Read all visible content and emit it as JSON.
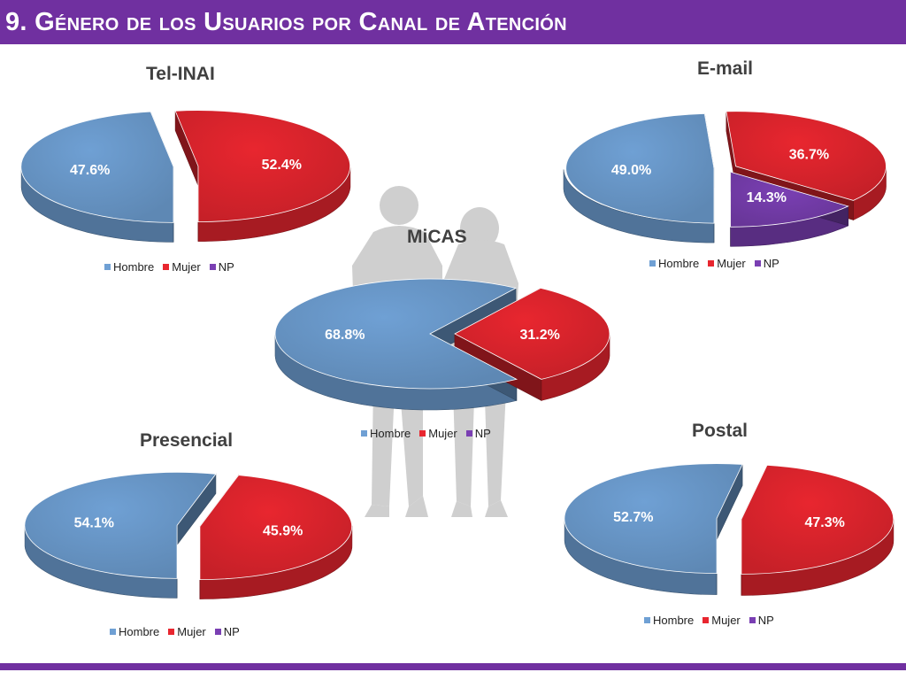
{
  "header": {
    "title": "9. Género de los Usuarios por Canal de Atención"
  },
  "colors": {
    "hombre": "#6fa0d4",
    "mujer": "#e8262f",
    "np": "#7a3fb3",
    "header_bar": "#7030a0",
    "silhouette": "#cfcfcf"
  },
  "chart_data": [
    {
      "id": "tel-inai",
      "type": "pie",
      "title": "Tel-INAI",
      "categories": [
        "Hombre",
        "Mujer",
        "NP"
      ],
      "values": [
        47.6,
        52.4,
        0
      ],
      "labels": [
        "47.6%",
        "52.4%",
        ""
      ],
      "legend": [
        "Hombre",
        "Mujer",
        "NP"
      ],
      "legend_position": "bottom"
    },
    {
      "id": "e-mail",
      "type": "pie",
      "title": "E-mail",
      "categories": [
        "Hombre",
        "Mujer",
        "NP"
      ],
      "values": [
        49.0,
        36.7,
        14.3
      ],
      "labels": [
        "49.0%",
        "36.7%",
        "14.3%"
      ],
      "legend": [
        "Hombre",
        "Mujer",
        "NP"
      ],
      "legend_position": "bottom"
    },
    {
      "id": "micas",
      "type": "pie",
      "title": "MiCAS",
      "categories": [
        "Hombre",
        "Mujer",
        "NP"
      ],
      "values": [
        68.8,
        31.2,
        0
      ],
      "labels": [
        "68.8%",
        "31.2%",
        ""
      ],
      "legend": [
        "Hombre",
        "Mujer",
        "NP"
      ],
      "legend_position": "bottom"
    },
    {
      "id": "presencial",
      "type": "pie",
      "title": "Presencial",
      "categories": [
        "Hombre",
        "Mujer",
        "NP"
      ],
      "values": [
        54.1,
        45.9,
        0
      ],
      "labels": [
        "54.1%",
        "45.9%",
        ""
      ],
      "legend": [
        "Hombre",
        "Mujer",
        "NP"
      ],
      "legend_position": "bottom"
    },
    {
      "id": "postal",
      "type": "pie",
      "title": "Postal",
      "categories": [
        "Hombre",
        "Mujer",
        "NP"
      ],
      "values": [
        52.7,
        47.3,
        0
      ],
      "labels": [
        "52.7%",
        "47.3%",
        ""
      ],
      "legend": [
        "Hombre",
        "Mujer",
        "NP"
      ],
      "legend_position": "bottom"
    }
  ]
}
